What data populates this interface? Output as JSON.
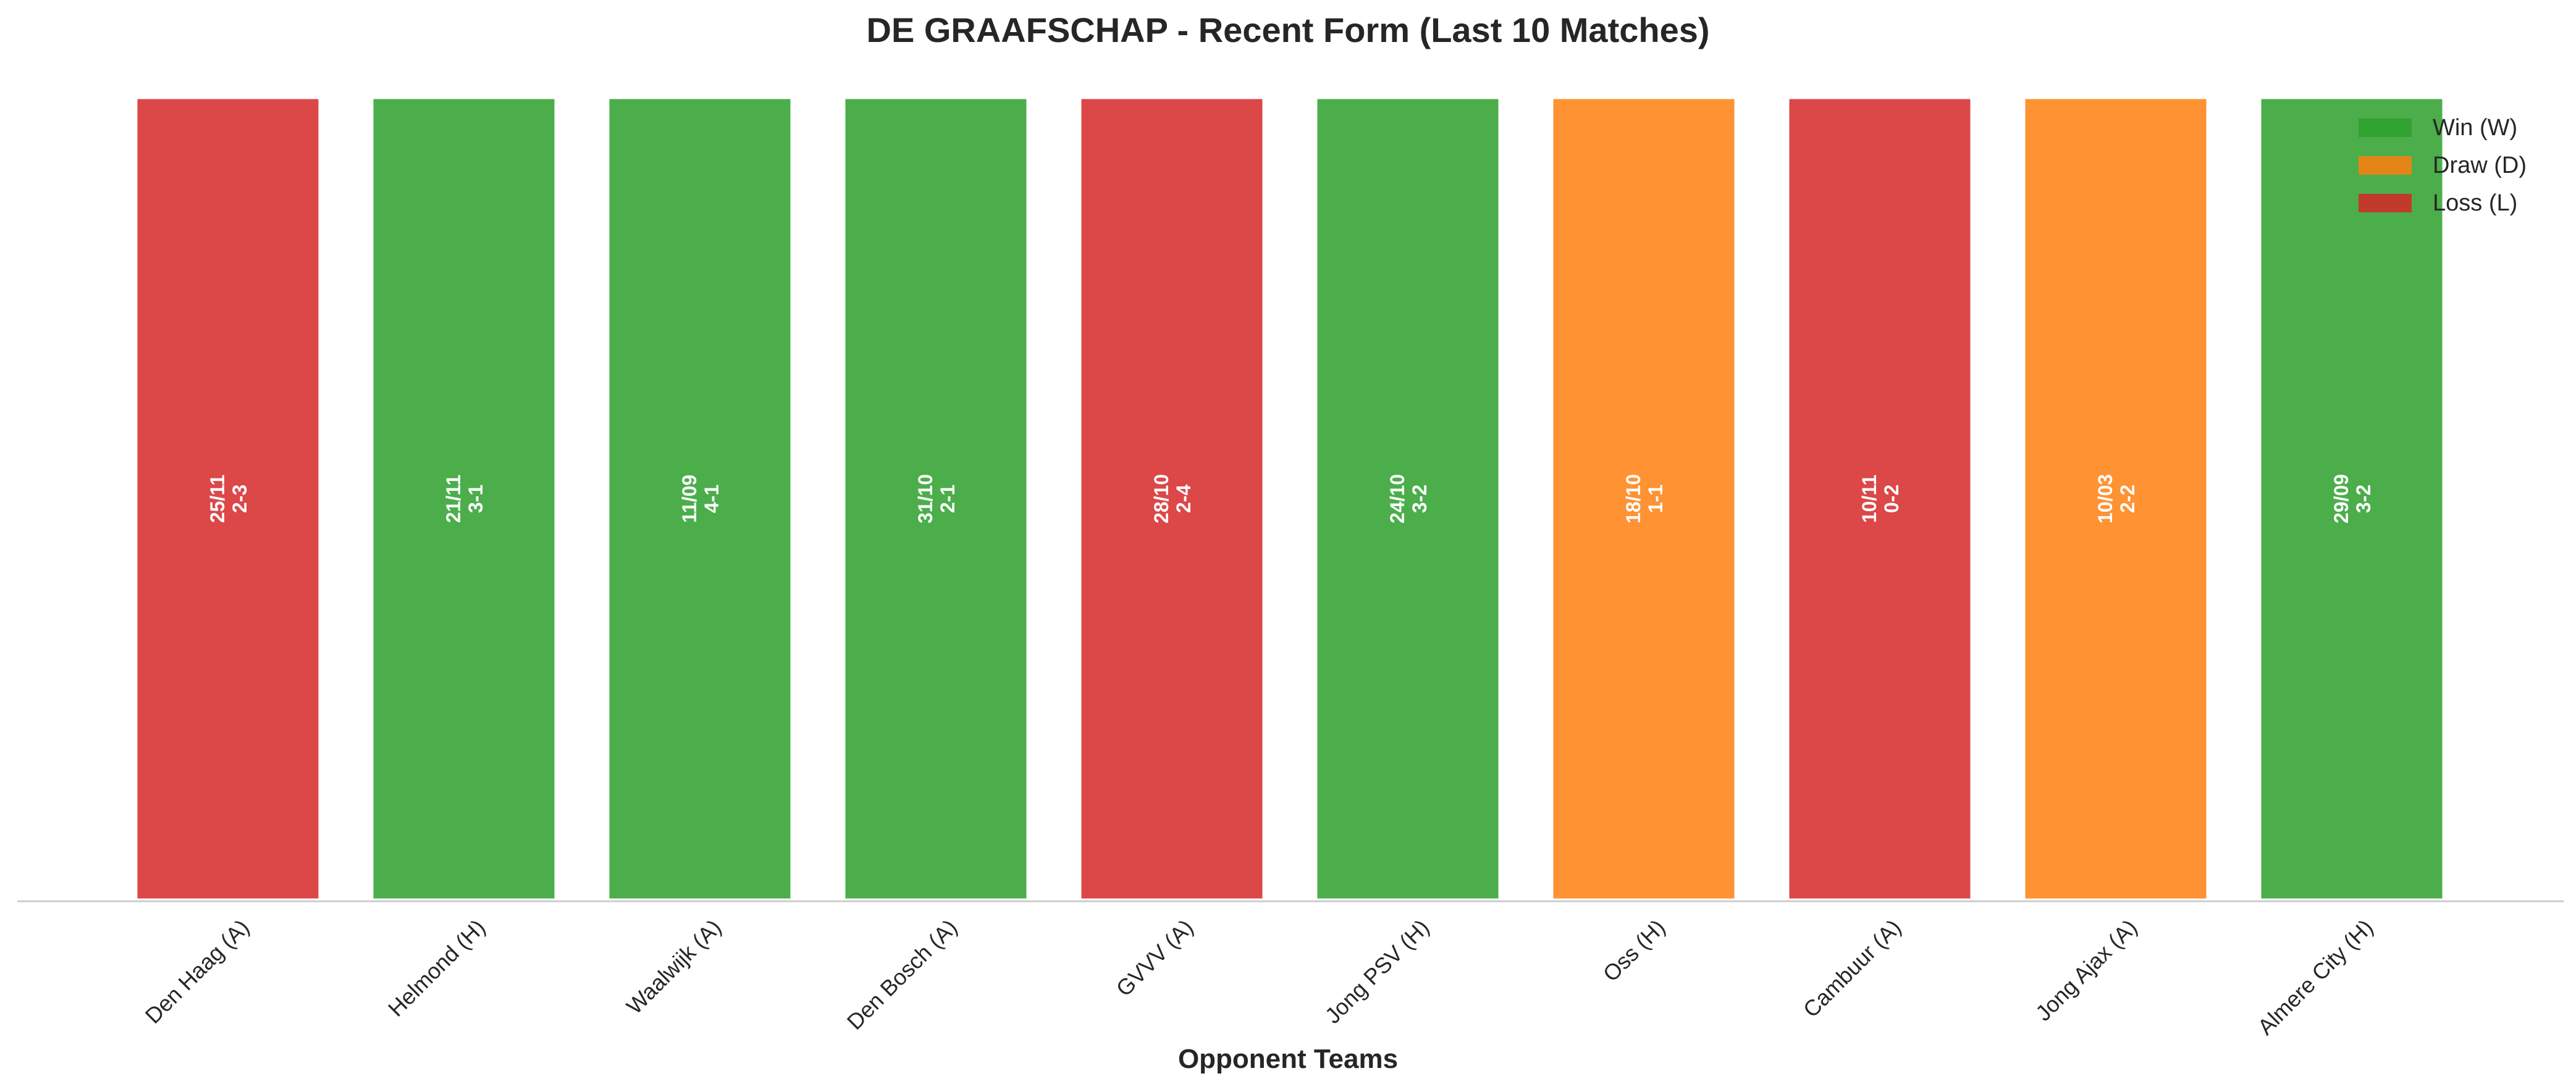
{
  "chart_data": {
    "type": "bar",
    "title": "DE GRAAFSCHAP - Recent Form (Last 10 Matches)",
    "xlabel": "Opponent Teams",
    "ylabel": "",
    "ylim": [
      0,
      1
    ],
    "grid": false,
    "legend_position": "top-right",
    "categories": [
      "Den Haag (A)",
      "Helmond (H)",
      "Waalwijk (A)",
      "Den Bosch (A)",
      "GVVV (A)",
      "Jong PSV (H)",
      "Oss (H)",
      "Cambuur (A)",
      "Jong Ajax (A)",
      "Almere City (H)"
    ],
    "values": [
      1,
      1,
      1,
      1,
      1,
      1,
      1,
      1,
      1,
      1
    ],
    "results": [
      "L",
      "W",
      "W",
      "W",
      "L",
      "W",
      "D",
      "L",
      "D",
      "W"
    ],
    "dates": [
      "25/11",
      "21/11",
      "11/09",
      "31/10",
      "28/10",
      "24/10",
      "18/10",
      "10/11",
      "10/03",
      "29/09"
    ],
    "scores": [
      "2-3",
      "3-1",
      "4-1",
      "2-1",
      "2-4",
      "3-2",
      "1-1",
      "0-2",
      "2-2",
      "3-2"
    ],
    "legend": [
      {
        "key": "W",
        "label": "Win (W)",
        "color": "#2ca02c"
      },
      {
        "key": "D",
        "label": "Draw (D)",
        "color": "#ff7f0e"
      },
      {
        "key": "L",
        "label": "Loss (L)",
        "color": "#d62728"
      }
    ],
    "colors": {
      "W": "#2ca02c",
      "D": "#ff7f0e",
      "L": "#d62728"
    }
  }
}
